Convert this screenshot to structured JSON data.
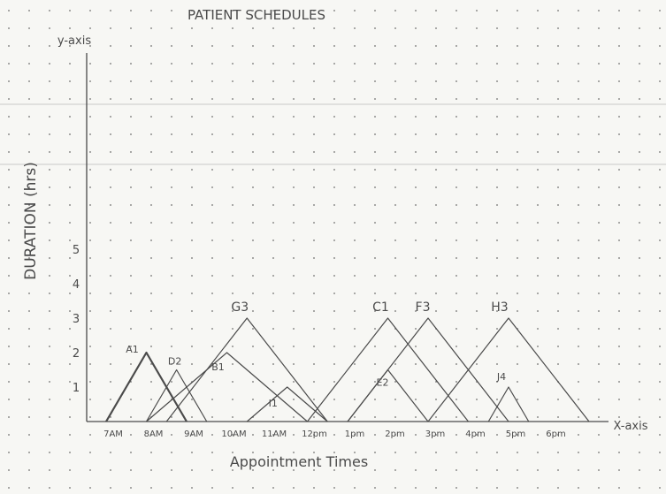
{
  "title": "PATIENT SCHEDULES",
  "axes": {
    "y_axis_label": "y-axis",
    "x_axis_label": "X-axis",
    "y_title": "DURATION (hrs)",
    "x_title": "Appointment Times",
    "y_ticks": [
      "1",
      "2",
      "3",
      "4",
      "5"
    ],
    "x_ticks": [
      "7AM",
      "8AM",
      "9AM",
      "10AM",
      "11AM",
      "12pm",
      "1pm",
      "2pm",
      "3pm",
      "4pm",
      "5pm",
      "6pm"
    ]
  },
  "colors": {
    "pencil": "#4a4a4a",
    "paper": "#f7f7f4",
    "dots": "#6f6f6f",
    "rules": "#c9c9c9"
  },
  "chart_data": {
    "type": "line",
    "x_unit": "hour of day",
    "y_unit": "hours",
    "xlim": [
      7,
      18
    ],
    "ylim": [
      0,
      5
    ],
    "series": [
      {
        "name": "A1",
        "start": 7,
        "peak": 8,
        "end": 9,
        "height": 2
      },
      {
        "name": "D2",
        "start": 8,
        "peak": 8.75,
        "end": 9.5,
        "height": 1.5
      },
      {
        "name": "G3",
        "start": 8.5,
        "peak": 10.5,
        "end": 12.5,
        "height": 3
      },
      {
        "name": "B1",
        "start": 8,
        "peak": 10,
        "end": 12,
        "height": 2
      },
      {
        "name": "I1",
        "start": 10.5,
        "peak": 11.5,
        "end": 12.5,
        "height": 1
      },
      {
        "name": "C1",
        "start": 12,
        "peak": 14,
        "end": 16,
        "height": 3
      },
      {
        "name": "E2",
        "start": 13,
        "peak": 14,
        "end": 15,
        "height": 1.5
      },
      {
        "name": "F3",
        "start": 13,
        "peak": 15,
        "end": 17,
        "height": 3
      },
      {
        "name": "H3",
        "start": 15,
        "peak": 17,
        "end": 19,
        "height": 3
      },
      {
        "name": "J4",
        "start": 16.5,
        "peak": 17,
        "end": 17.5,
        "height": 1
      }
    ]
  }
}
